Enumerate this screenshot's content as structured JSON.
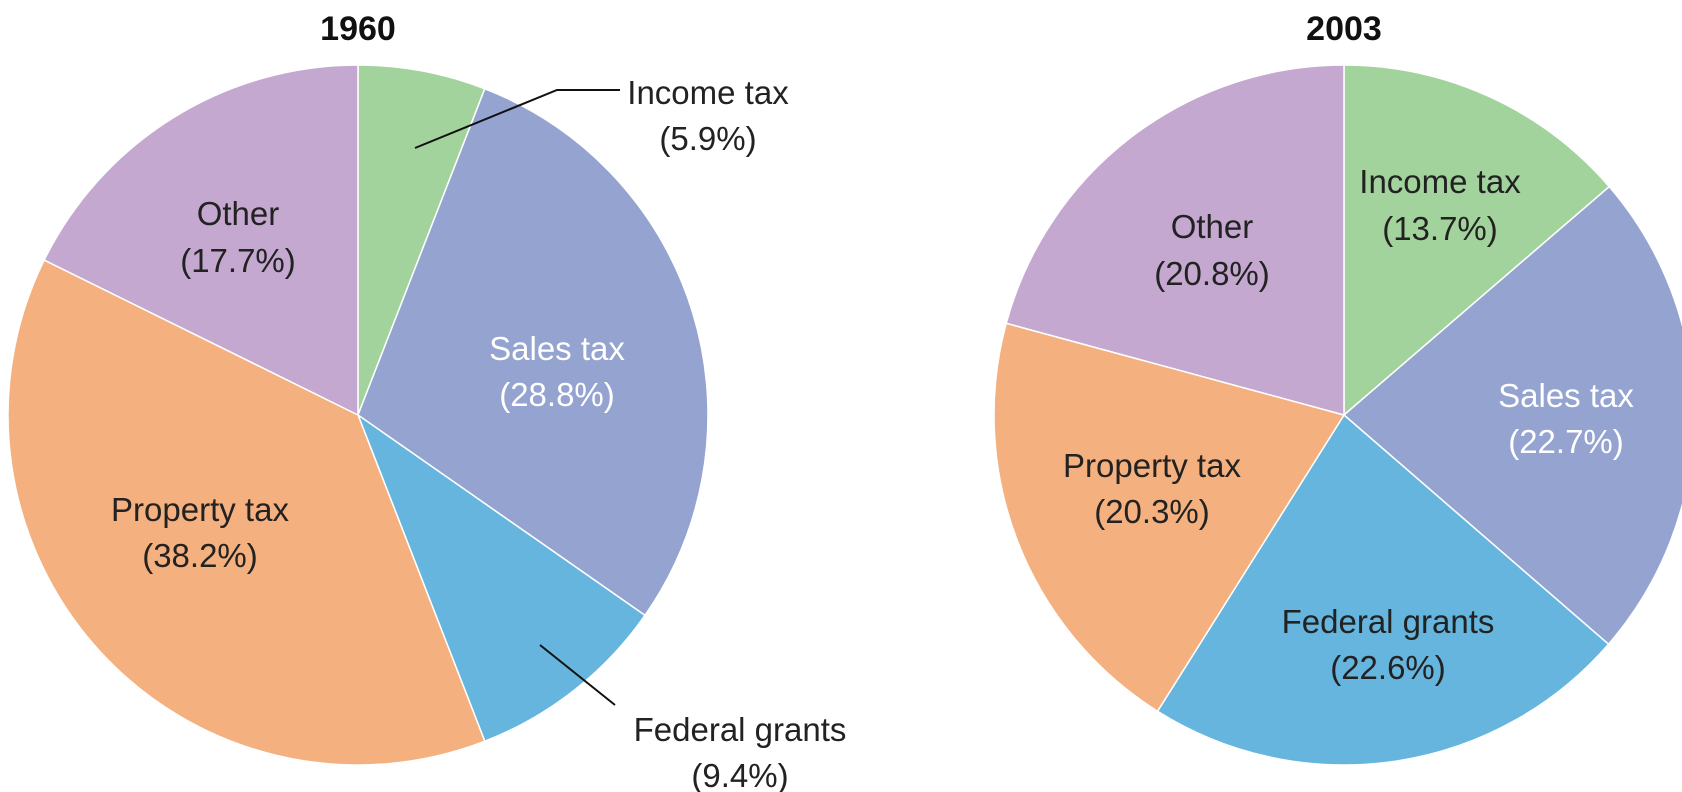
{
  "chart_data": [
    {
      "type": "pie",
      "title": "1960",
      "slices": [
        {
          "label": "Income tax",
          "value": 5.9,
          "value_label": "(5.9%)",
          "color": "#a3d39c"
        },
        {
          "label": "Sales tax",
          "value": 28.8,
          "value_label": "(28.8%)",
          "color": "#94a3d0"
        },
        {
          "label": "Federal grants",
          "value": 9.4,
          "value_label": "(9.4%)",
          "color": "#66b5de"
        },
        {
          "label": "Property tax",
          "value": 38.2,
          "value_label": "(38.2%)",
          "color": "#f4b07e"
        },
        {
          "label": "Other",
          "value": 17.7,
          "value_label": "(17.7%)",
          "color": "#c4a8cf"
        }
      ]
    },
    {
      "type": "pie",
      "title": "2003",
      "slices": [
        {
          "label": "Income tax",
          "value": 13.7,
          "value_label": "(13.7%)",
          "color": "#a3d39c"
        },
        {
          "label": "Sales tax",
          "value": 22.7,
          "value_label": "(22.7%)",
          "color": "#94a3d0"
        },
        {
          "label": "Federal grants",
          "value": 22.6,
          "value_label": "(22.6%)",
          "color": "#66b5de"
        },
        {
          "label": "Property tax",
          "value": 20.3,
          "value_label": "(20.3%)",
          "color": "#f4b07e"
        },
        {
          "label": "Other",
          "value": 20.8,
          "value_label": "(20.8%)",
          "color": "#c4a8cf"
        }
      ]
    }
  ]
}
